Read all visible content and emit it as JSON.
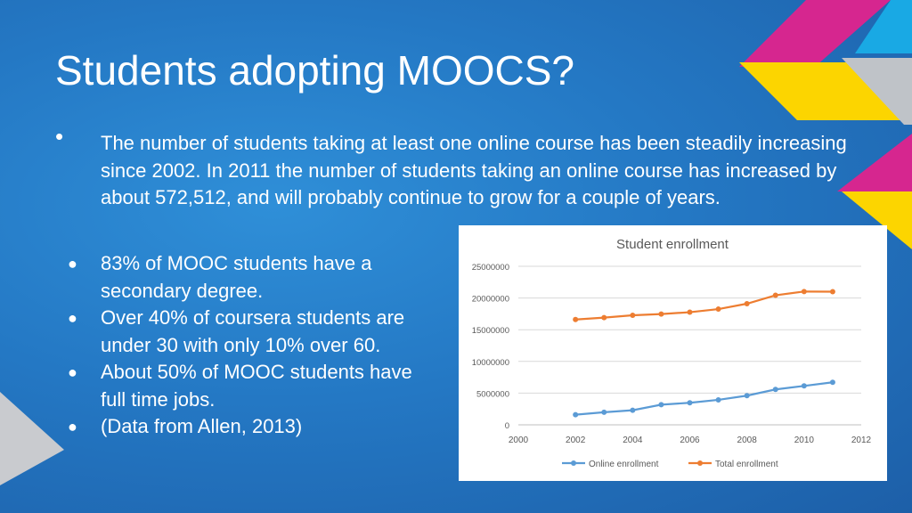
{
  "slide": {
    "title": "Students adopting MOOCS?",
    "intro_bullet_symbol": "•",
    "intro_text": "The number of students taking at least one online course has been steadily increasing since 2002. In 2011 the number of students taking an online course has increased by about 572,512, and will probably continue to grow for a couple of years.",
    "bullet_symbol": "●",
    "bullets": [
      "83% of MOOC students have a secondary degree.",
      "Over 40% of coursera students are under 30 with only 10% over 60.",
      "About 50% of MOOC students have full time jobs.",
      "(Data from Allen, 2013)"
    ]
  },
  "colors": {
    "background": "#2478c4",
    "accent_yellow": "#fcd500",
    "accent_magenta": "#d6268f",
    "accent_cyan": "#19a9e4",
    "accent_gray": "#bfc3c8",
    "online_series": "#5b9bd5",
    "total_series": "#ed7d31"
  },
  "chart_data": {
    "type": "line",
    "title": "Student enrollment",
    "xlabel": "",
    "ylabel": "",
    "xlim": [
      2000,
      2012
    ],
    "ylim": [
      0,
      25000000
    ],
    "x_ticks": [
      2000,
      2002,
      2004,
      2006,
      2008,
      2010,
      2012
    ],
    "y_ticks": [
      0,
      5000000,
      10000000,
      15000000,
      20000000,
      25000000
    ],
    "grid": "horizontal",
    "legend": "bottom",
    "x": [
      2002,
      2003,
      2004,
      2005,
      2006,
      2007,
      2008,
      2009,
      2010,
      2011
    ],
    "series": [
      {
        "name": "Online enrollment",
        "color": "#5b9bd5",
        "values": [
          1600000,
          1980000,
          2300000,
          3180000,
          3480000,
          3940000,
          4600000,
          5580000,
          6140000,
          6710000
        ]
      },
      {
        "name": "Total enrollment",
        "color": "#ed7d31",
        "values": [
          16610000,
          16910000,
          17280000,
          17470000,
          17760000,
          18250000,
          19100000,
          20430000,
          21020000,
          21000000
        ]
      }
    ]
  }
}
